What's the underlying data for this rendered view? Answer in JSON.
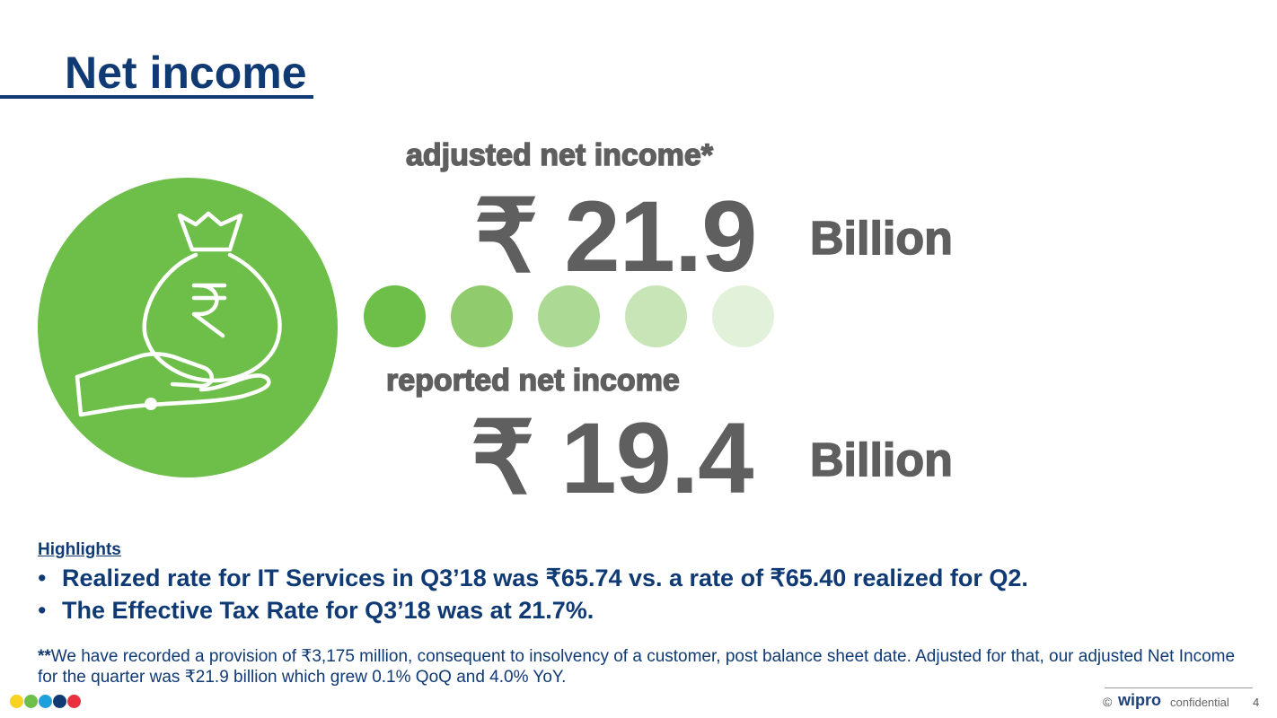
{
  "slide": {
    "title": "Net income",
    "page_number": "4"
  },
  "adjusted": {
    "label": "adjusted net income*",
    "value": "₹ 21.9",
    "unit": "Billion"
  },
  "reported": {
    "label": "reported net income",
    "value": "₹ 19.4",
    "unit": "Billion"
  },
  "highlights": {
    "heading": "Highlights",
    "bullet": "•",
    "items": [
      "Realized rate for IT Services in Q3’18 was ₹65.74 vs. a rate of ₹65.40 realized for Q2.",
      "The Effective Tax Rate for Q3’18 was at 21.7%."
    ]
  },
  "footnote": {
    "marker": "**",
    "text": "We have recorded a provision of ₹3,175 million, consequent to insolvency of a customer, post balance sheet date. Adjusted for that, our adjusted Net Income for the quarter was ₹21.9 billion which grew 0.1% QoQ and 4.0% YoY."
  },
  "footer": {
    "copyright": "©",
    "brand": "wipro",
    "confidential": "confidential"
  },
  "icons": {
    "main": "money-bag-hand-icon"
  },
  "colors": {
    "title": "#0f3a74",
    "circle": "#6dbf4a",
    "metric_text": "#5f5f5f",
    "progress_dots": [
      "#6dbf4a",
      "#90cc6e",
      "#acd994",
      "#c8e5b8",
      "#e2f1da"
    ],
    "brand_dots": [
      "#f7d21e",
      "#6dbf4a",
      "#1ea0dd",
      "#0f3a74",
      "#e8303f"
    ]
  }
}
